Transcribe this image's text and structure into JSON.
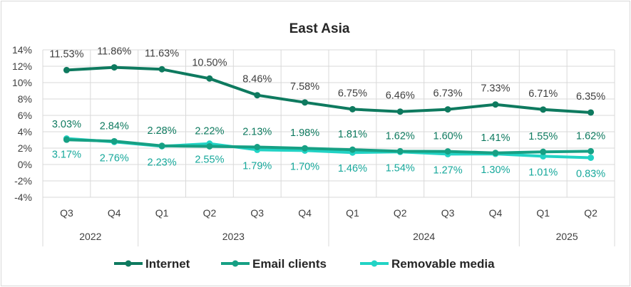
{
  "chart_data": {
    "type": "line",
    "title": "East Asia",
    "xlabel": "",
    "ylabel": "",
    "ylim": [
      -4,
      14
    ],
    "yticks": [
      "14%",
      "12%",
      "10%",
      "8%",
      "6%",
      "4%",
      "2%",
      "0%",
      "-2%",
      "-4%"
    ],
    "ytick_values": [
      14,
      12,
      10,
      8,
      6,
      4,
      2,
      0,
      -2,
      -4
    ],
    "grid": "on",
    "legend_position": "bottom",
    "categories": [
      "Q3",
      "Q4",
      "Q1",
      "Q2",
      "Q3",
      "Q4",
      "Q1",
      "Q2",
      "Q3",
      "Q4",
      "Q1",
      "Q2"
    ],
    "year_groups": [
      {
        "label": "2022",
        "span": 2
      },
      {
        "label": "2023",
        "span": 4
      },
      {
        "label": "2024",
        "span": 4
      },
      {
        "label": "2025",
        "span": 2
      }
    ],
    "series": [
      {
        "name": "Internet",
        "color": "#0e7a5f",
        "values": [
          11.53,
          11.86,
          11.63,
          10.5,
          8.46,
          7.58,
          6.75,
          6.46,
          6.73,
          7.33,
          6.71,
          6.35
        ],
        "labels": [
          "11.53%",
          "11.86%",
          "11.63%",
          "10.50%",
          "8.46%",
          "7.58%",
          "6.75%",
          "6.46%",
          "6.73%",
          "7.33%",
          "6.71%",
          "6.35%"
        ]
      },
      {
        "name": "Email clients",
        "color": "#16a084",
        "values": [
          3.03,
          2.84,
          2.28,
          2.22,
          2.13,
          1.98,
          1.81,
          1.62,
          1.6,
          1.41,
          1.55,
          1.62
        ],
        "labels": [
          "3.03%",
          "2.84%",
          "2.28%",
          "2.22%",
          "2.13%",
          "1.98%",
          "1.81%",
          "1.62%",
          "1.60%",
          "1.41%",
          "1.55%",
          "1.62%"
        ]
      },
      {
        "name": "Removable media",
        "color": "#22d3c5",
        "values": [
          3.17,
          2.76,
          2.23,
          2.55,
          1.79,
          1.7,
          1.46,
          1.54,
          1.27,
          1.3,
          1.01,
          0.83
        ],
        "labels": [
          "3.17%",
          "2.76%",
          "2.23%",
          "2.55%",
          "1.79%",
          "1.70%",
          "1.46%",
          "1.54%",
          "1.27%",
          "1.30%",
          "1.01%",
          "0.83%"
        ]
      }
    ]
  }
}
